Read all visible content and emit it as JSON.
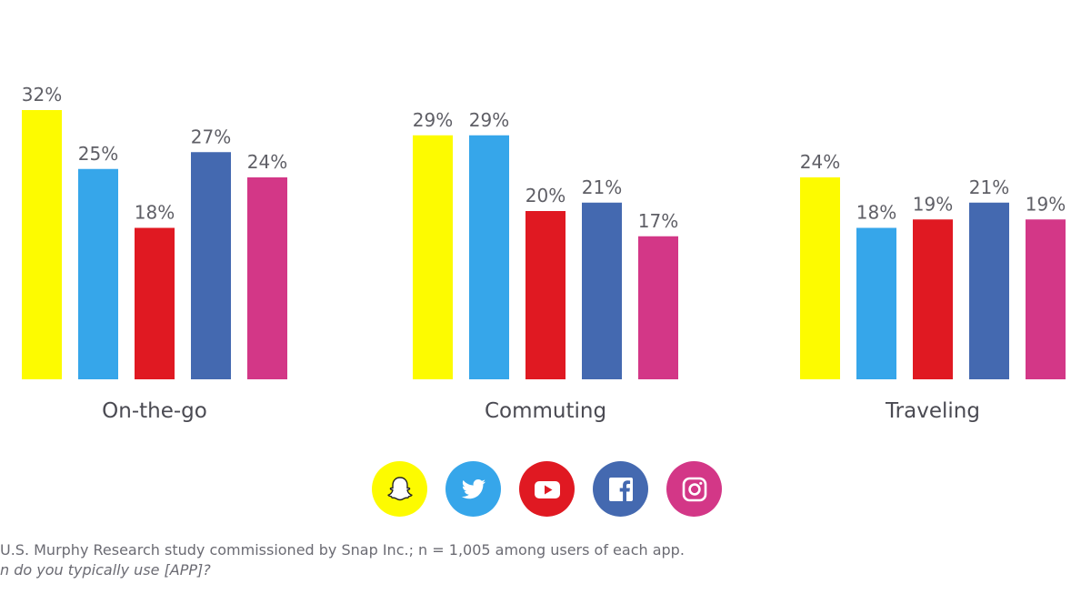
{
  "chart_data": {
    "type": "bar",
    "categories": [
      "On-the-go",
      "Commuting",
      "Traveling"
    ],
    "series": [
      {
        "name": "Snapchat",
        "color": "#fdfb00",
        "values": [
          32,
          29,
          24
        ],
        "labels": [
          "32%",
          "29%",
          "24%"
        ]
      },
      {
        "name": "Twitter",
        "color": "#36a6ea",
        "values": [
          25,
          29,
          18
        ],
        "labels": [
          "25%",
          "29%",
          "18%"
        ]
      },
      {
        "name": "YouTube",
        "color": "#e01922",
        "values": [
          18,
          20,
          19
        ],
        "labels": [
          "18%",
          "20%",
          "19%"
        ]
      },
      {
        "name": "Facebook",
        "color": "#4469b0",
        "values": [
          27,
          21,
          21
        ],
        "labels": [
          "27%",
          "21%",
          "21%"
        ]
      },
      {
        "name": "Instagram",
        "color": "#d33787",
        "values": [
          24,
          17,
          19
        ],
        "labels": [
          "24%",
          "17%",
          "19%"
        ]
      }
    ],
    "ylim": [
      0,
      32
    ],
    "title": "",
    "xlabel": "",
    "ylabel": ""
  },
  "legend": {
    "items": [
      {
        "icon": "snapchat-ghost-icon",
        "bg": "#fdfb00"
      },
      {
        "icon": "twitter-bird-icon",
        "bg": "#36a6ea"
      },
      {
        "icon": "youtube-play-icon",
        "bg": "#e01922"
      },
      {
        "icon": "facebook-f-icon",
        "bg": "#4469b0"
      },
      {
        "icon": "instagram-camera-icon",
        "bg": "#d33787"
      }
    ]
  },
  "footnote": {
    "source": "U.S. Murphy Research study commissioned by Snap Inc.; n = 1,005 among users of each app.",
    "question": "n do you typically use [APP]?"
  }
}
